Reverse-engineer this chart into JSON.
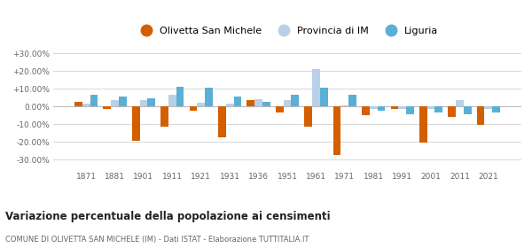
{
  "years": [
    1871,
    1881,
    1901,
    1911,
    1921,
    1931,
    1936,
    1951,
    1961,
    1971,
    1981,
    1991,
    2001,
    2011,
    2021
  ],
  "olivetta": [
    2.5,
    -1.5,
    -19.5,
    -11.5,
    -2.5,
    -17.5,
    3.5,
    -3.5,
    -11.5,
    -27.5,
    -5.0,
    -1.5,
    -20.5,
    -6.0,
    -10.5
  ],
  "provincia": [
    1.5,
    3.5,
    3.5,
    6.5,
    2.0,
    1.5,
    4.0,
    3.5,
    21.0,
    0.5,
    -1.5,
    -1.5,
    -1.5,
    3.5,
    -1.5
  ],
  "liguria": [
    6.5,
    5.5,
    4.5,
    11.0,
    10.5,
    5.5,
    2.5,
    6.5,
    10.5,
    6.5,
    -2.5,
    -4.5,
    -3.5,
    -4.5,
    -3.5
  ],
  "olivetta_color": "#d45f00",
  "provincia_color": "#b8d0e8",
  "liguria_color": "#5aafd6",
  "title": "Variazione percentuale della popolazione ai censimenti",
  "subtitle": "COMUNE DI OLIVETTA SAN MICHELE (IM) - Dati ISTAT - Elaborazione TUTTITALIA.IT",
  "ylim": [
    -35,
    35
  ],
  "yticks": [
    -30,
    -20,
    -10,
    0,
    10,
    20,
    30
  ],
  "ytick_labels": [
    "-30.00%",
    "-20.00%",
    "-10.00%",
    "0.00%",
    "+10.00%",
    "+20.00%",
    "+30.00%"
  ],
  "bar_width": 0.27,
  "legend_labels": [
    "Olivetta San Michele",
    "Provincia di IM",
    "Liguria"
  ],
  "background_color": "#ffffff",
  "grid_color": "#d8d8d8"
}
